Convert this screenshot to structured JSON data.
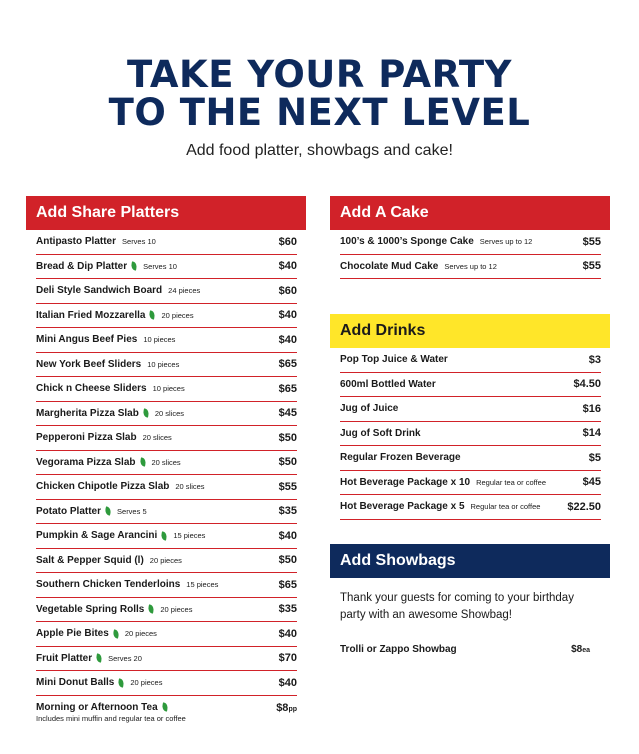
{
  "title_line1": "TAKE YOUR PARTY",
  "title_line2": "TO THE NEXT LEVEL",
  "subtitle": "Add food platter, showbags and cake!",
  "share_platters": {
    "heading": "Add Share Platters",
    "items": [
      {
        "name": "Antipasto Platter",
        "note": "Serves 10",
        "price": "$60",
        "veg": false
      },
      {
        "name": "Bread & Dip Platter",
        "note": "Serves 10",
        "price": "$40",
        "veg": true
      },
      {
        "name": "Deli Style Sandwich Board",
        "note": "24 pieces",
        "price": "$60",
        "veg": false
      },
      {
        "name": "Italian Fried Mozzarella",
        "note": "20 pieces",
        "price": "$40",
        "veg": true
      },
      {
        "name": "Mini Angus Beef Pies",
        "note": "10 pieces",
        "price": "$40",
        "veg": false
      },
      {
        "name": "New York Beef Sliders",
        "note": "10 pieces",
        "price": "$65",
        "veg": false
      },
      {
        "name": "Chick n Cheese Sliders",
        "note": "10 pieces",
        "price": "$65",
        "veg": false
      },
      {
        "name": "Margherita Pizza Slab",
        "note": "20 slices",
        "price": "$45",
        "veg": true
      },
      {
        "name": "Pepperoni Pizza Slab",
        "note": "20 slices",
        "price": "$50",
        "veg": false
      },
      {
        "name": "Vegorama Pizza Slab",
        "note": "20 slices",
        "price": "$50",
        "veg": true
      },
      {
        "name": "Chicken Chipotle Pizza Slab",
        "note": "20 slices",
        "price": "$55",
        "veg": false
      },
      {
        "name": "Potato Platter",
        "note": "Serves 5",
        "price": "$35",
        "veg": true
      },
      {
        "name": "Pumpkin & Sage Arancini",
        "note": "15 pieces",
        "price": "$40",
        "veg": true
      },
      {
        "name": "Salt & Pepper Squid (l)",
        "note": "20 pieces",
        "price": "$50",
        "veg": false
      },
      {
        "name": "Southern Chicken Tenderloins",
        "note": "15 pieces",
        "price": "$65",
        "veg": false
      },
      {
        "name": "Vegetable Spring Rolls",
        "note": "20 pieces",
        "price": "$35",
        "veg": true
      },
      {
        "name": "Apple Pie Bites",
        "note": "20 pieces",
        "price": "$40",
        "veg": true
      },
      {
        "name": "Fruit Platter",
        "note": "Serves 20",
        "price": "$70",
        "veg": true
      },
      {
        "name": "Mini Donut Balls",
        "note": "20 pieces",
        "price": "$40",
        "veg": true
      }
    ],
    "tea": {
      "name": "Morning or Afternoon Tea",
      "sub": "Includes mini muffin and regular tea or coffee",
      "price": "$8",
      "unit": "pp"
    }
  },
  "cake": {
    "heading": "Add A Cake",
    "items": [
      {
        "name": "100’s & 1000’s Sponge Cake",
        "note": "Serves up to 12",
        "price": "$55"
      },
      {
        "name": "Chocolate Mud Cake",
        "note": "Serves up to 12",
        "price": "$55"
      }
    ]
  },
  "drinks": {
    "heading": "Add Drinks",
    "items": [
      {
        "name": "Pop Top Juice & Water",
        "note": "",
        "price": "$3"
      },
      {
        "name": "600ml Bottled Water",
        "note": "",
        "price": "$4.50"
      },
      {
        "name": "Jug of Juice",
        "note": "",
        "price": "$16"
      },
      {
        "name": "Jug of Soft Drink",
        "note": "",
        "price": "$14"
      },
      {
        "name": "Regular Frozen Beverage",
        "note": "",
        "price": "$5"
      },
      {
        "name": "Hot Beverage Package x 10",
        "note": "Regular tea or coffee",
        "price": "$45"
      },
      {
        "name": "Hot Beverage Package x 5",
        "note": "Regular tea or coffee",
        "price": "$22.50"
      }
    ]
  },
  "showbags": {
    "heading": "Add Showbags",
    "text": "Thank your guests for coming to your birthday party with an awesome Showbag!",
    "item": {
      "name": "Trolli or Zappo Showbag",
      "price": "$8",
      "unit": "ea"
    }
  },
  "colors": {
    "navy": "#0e2a5c",
    "red": "#d12229",
    "yellow": "#ffe629",
    "veg_leaf": "#2e9a3c"
  }
}
